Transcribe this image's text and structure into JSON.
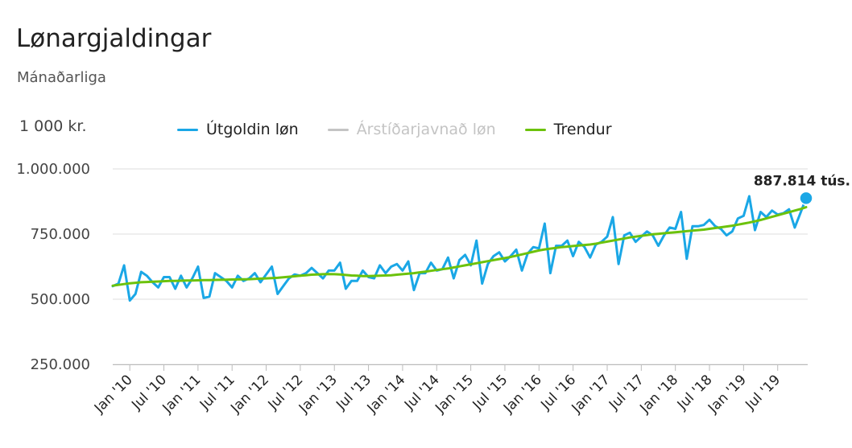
{
  "header": {
    "title": "Lønargjaldingar",
    "subtitle": "Mánaðarliga",
    "unit": "1 000 kr."
  },
  "legend": [
    {
      "label": "Útgoldin løn",
      "color": "#1aa7e6",
      "enabled": true
    },
    {
      "label": "Árstíðarjavnað løn",
      "color": "#c4c4c4",
      "enabled": false
    },
    {
      "label": "Trendur",
      "color": "#6cc20c",
      "enabled": true
    }
  ],
  "chart_data": {
    "type": "line",
    "ylim": [
      250000,
      1000000
    ],
    "yticks": [
      250000,
      500000,
      750000,
      1000000
    ],
    "ytick_labels": [
      "250.000",
      "500.000",
      "750.000",
      "1.000.000"
    ],
    "grid": true,
    "legend_position": "top",
    "x_start": "2009-10",
    "xtick_labels": [
      "Jan '10",
      "Jul '10",
      "Jan '11",
      "Jul '11",
      "Jan '12",
      "Jul '12",
      "Jan '13",
      "Jul '13",
      "Jan '14",
      "Jul '14",
      "Jan '15",
      "Jul '15",
      "Jan '16",
      "Jul '16",
      "Jan '17",
      "Jul '17",
      "Jan '18",
      "Jul '18",
      "Jan '19",
      "Jul '19"
    ],
    "end_label": "887.814 tús.",
    "series": [
      {
        "name": "Útgoldin løn",
        "color": "#1aa7e6",
        "values": [
          550000,
          560000,
          630000,
          495000,
          520000,
          605000,
          590000,
          565000,
          545000,
          585000,
          585000,
          540000,
          590000,
          545000,
          580000,
          625000,
          505000,
          510000,
          600000,
          585000,
          570000,
          545000,
          590000,
          570000,
          580000,
          600000,
          565000,
          595000,
          625000,
          520000,
          550000,
          580000,
          595000,
          590000,
          600000,
          620000,
          600000,
          580000,
          610000,
          610000,
          640000,
          540000,
          570000,
          570000,
          610000,
          585000,
          580000,
          630000,
          600000,
          625000,
          635000,
          610000,
          645000,
          535000,
          600000,
          600000,
          640000,
          610000,
          615000,
          660000,
          580000,
          650000,
          670000,
          630000,
          725000,
          560000,
          635000,
          665000,
          680000,
          645000,
          665000,
          690000,
          610000,
          675000,
          700000,
          695000,
          790000,
          600000,
          705000,
          705000,
          725000,
          665000,
          720000,
          700000,
          660000,
          710000,
          720000,
          740000,
          815000,
          635000,
          745000,
          755000,
          720000,
          740000,
          760000,
          745000,
          705000,
          745000,
          775000,
          770000,
          835000,
          655000,
          780000,
          780000,
          785000,
          805000,
          780000,
          770000,
          745000,
          760000,
          810000,
          820000,
          895000,
          765000,
          835000,
          815000,
          840000,
          825000,
          830000,
          845000,
          775000,
          830000,
          887814
        ]
      },
      {
        "name": "Trendur",
        "color": "#6cc20c",
        "values": [
          552000,
          555000,
          558000,
          561000,
          563000,
          565000,
          566000,
          567000,
          568000,
          569000,
          570000,
          570500,
          571000,
          571500,
          572000,
          572500,
          573000,
          573500,
          574000,
          574500,
          575000,
          575500,
          576000,
          576500,
          577000,
          578000,
          579000,
          580000,
          581000,
          582000,
          584000,
          586000,
          588000,
          590000,
          592000,
          594000,
          595000,
          596000,
          596500,
          596000,
          595000,
          593000,
          591000,
          590000,
          589000,
          589000,
          589500,
          590000,
          591000,
          592000,
          594000,
          596000,
          598000,
          600000,
          603000,
          606000,
          609000,
          612000,
          615000,
          618000,
          622000,
          626000,
          630000,
          634000,
          638000,
          642000,
          646000,
          650000,
          654000,
          658000,
          662000,
          667000,
          672000,
          677000,
          682000,
          687000,
          691000,
          694000,
          697000,
          700000,
          702000,
          704000,
          706000,
          708000,
          710000,
          713000,
          717000,
          721000,
          725000,
          729000,
          733000,
          737000,
          740000,
          743000,
          746000,
          749000,
          751000,
          753000,
          755000,
          757000,
          759000,
          761000,
          763000,
          765000,
          767000,
          770000,
          773000,
          776000,
          779000,
          782000,
          786000,
          790000,
          794000,
          799000,
          804000,
          810000,
          816000,
          822000,
          828000,
          834000,
          840000,
          846000,
          853000
        ]
      }
    ]
  }
}
